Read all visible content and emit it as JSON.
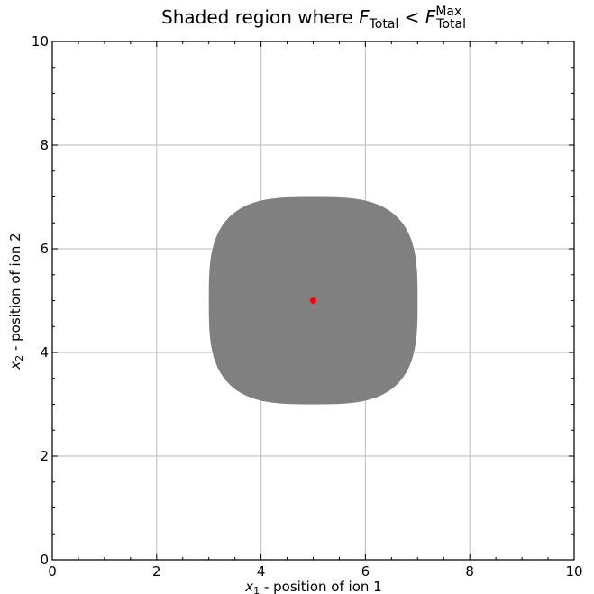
{
  "chart_data": {
    "type": "scatter",
    "title": {
      "prefix": "Shaded region where ",
      "lhs_symbol": "F",
      "lhs_sub": "Total",
      "relation": " < ",
      "rhs_symbol": "F",
      "rhs_sub": "Total",
      "rhs_sup": "Max"
    },
    "xlabel": {
      "symbol": "x",
      "sub": "1",
      "text": " - position of ion 1"
    },
    "ylabel": {
      "symbol": "x",
      "sub": "2",
      "text": " - position of ion 2"
    },
    "xlim": [
      0,
      10
    ],
    "ylim": [
      0,
      10
    ],
    "xticks": [
      0,
      2,
      4,
      6,
      8,
      10
    ],
    "yticks": [
      0,
      2,
      4,
      6,
      8,
      10
    ],
    "xtick_labels": [
      "0",
      "2",
      "4",
      "6",
      "8",
      "10"
    ],
    "ytick_labels": [
      "0",
      "2",
      "4",
      "6",
      "8",
      "10"
    ],
    "minor_tick_step": 0.5,
    "grid": true,
    "region": {
      "center": [
        5,
        5
      ],
      "half_width": 2,
      "shape": "superellipse",
      "exponent": 3.2,
      "color": "#808080"
    },
    "point": {
      "x": 5,
      "y": 5,
      "color": "#ff0000"
    }
  }
}
